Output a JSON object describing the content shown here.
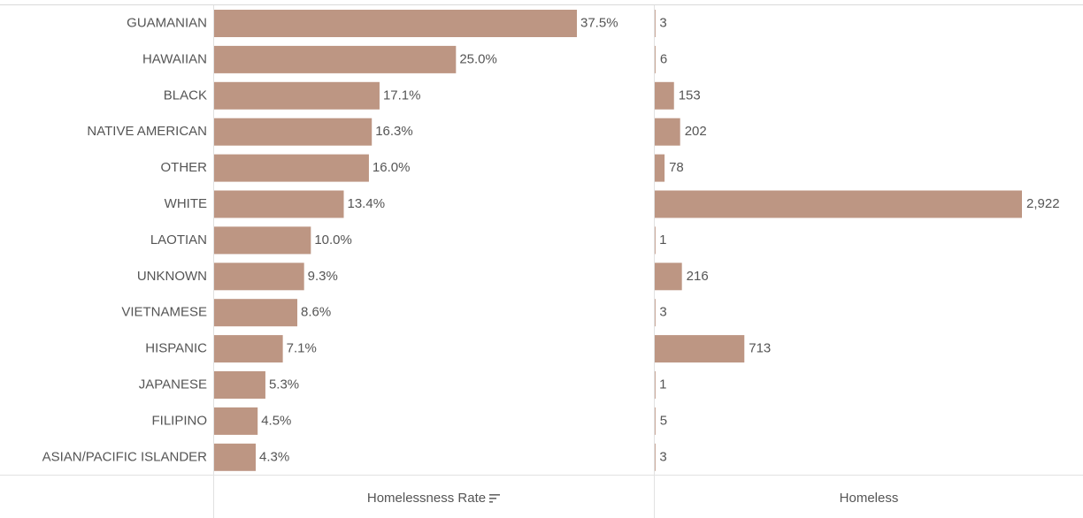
{
  "colors": {
    "bar": "#bd9683",
    "text": "#555555",
    "divider": "#e1e1e1"
  },
  "footer": {
    "rate_label": "Homelessness Rate",
    "count_label": "Homeless",
    "sort_icon": "sort-descending-icon"
  },
  "chart_data": [
    {
      "type": "bar",
      "orientation": "horizontal",
      "categories": [
        "GUAMANIAN",
        "HAWAIIAN",
        "BLACK",
        "NATIVE AMERICAN",
        "OTHER",
        "WHITE",
        "LAOTIAN",
        "UNKNOWN",
        "VIETNAMESE",
        "HISPANIC",
        "JAPANESE",
        "FILIPINO",
        "ASIAN/PACIFIC ISLANDER"
      ],
      "values": [
        37.5,
        25.0,
        17.1,
        16.3,
        16.0,
        13.4,
        10.0,
        9.3,
        8.6,
        7.1,
        5.3,
        4.5,
        4.3
      ],
      "value_labels": [
        "37.5%",
        "25.0%",
        "17.1%",
        "16.3%",
        "16.0%",
        "13.4%",
        "10.0%",
        "9.3%",
        "8.6%",
        "7.1%",
        "5.3%",
        "4.5%",
        "4.3%"
      ],
      "xlabel": "Homelessness Rate",
      "xlim": [
        0,
        37.5
      ],
      "sorted": "descending"
    },
    {
      "type": "bar",
      "orientation": "horizontal",
      "categories": [
        "GUAMANIAN",
        "HAWAIIAN",
        "BLACK",
        "NATIVE AMERICAN",
        "OTHER",
        "WHITE",
        "LAOTIAN",
        "UNKNOWN",
        "VIETNAMESE",
        "HISPANIC",
        "JAPANESE",
        "FILIPINO",
        "ASIAN/PACIFIC ISLANDER"
      ],
      "values": [
        3,
        6,
        153,
        202,
        78,
        2922,
        1,
        216,
        3,
        713,
        1,
        5,
        3
      ],
      "value_labels": [
        "3",
        "6",
        "153",
        "202",
        "78",
        "2,922",
        "1",
        "216",
        "3",
        "713",
        "1",
        "5",
        "3"
      ],
      "xlabel": "Homeless",
      "xlim": [
        0,
        2922
      ]
    }
  ]
}
